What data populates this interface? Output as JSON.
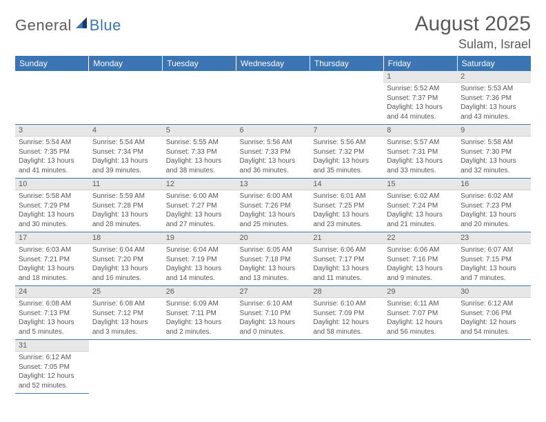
{
  "brand": {
    "text1": "General",
    "text2": "Blue",
    "sail_color": "#173a6a"
  },
  "title": "August 2025",
  "location": "Sulam, Israel",
  "colors": {
    "header_bg": "#3b75b3",
    "header_text": "#ffffff",
    "daynum_bg": "#e7e7e7",
    "rule": "#3b75b3",
    "body_text": "#555555"
  },
  "typography": {
    "title_fontsize": 30,
    "location_fontsize": 18,
    "weekday_fontsize": 12,
    "daynum_fontsize": 11,
    "cell_fontsize": 10
  },
  "weekdays": [
    "Sunday",
    "Monday",
    "Tuesday",
    "Wednesday",
    "Thursday",
    "Friday",
    "Saturday"
  ],
  "weeks": [
    [
      null,
      null,
      null,
      null,
      null,
      {
        "n": "1",
        "sr": "Sunrise: 5:52 AM",
        "ss": "Sunset: 7:37 PM",
        "dl": "Daylight: 13 hours and 44 minutes."
      },
      {
        "n": "2",
        "sr": "Sunrise: 5:53 AM",
        "ss": "Sunset: 7:36 PM",
        "dl": "Daylight: 13 hours and 43 minutes."
      }
    ],
    [
      {
        "n": "3",
        "sr": "Sunrise: 5:54 AM",
        "ss": "Sunset: 7:35 PM",
        "dl": "Daylight: 13 hours and 41 minutes."
      },
      {
        "n": "4",
        "sr": "Sunrise: 5:54 AM",
        "ss": "Sunset: 7:34 PM",
        "dl": "Daylight: 13 hours and 39 minutes."
      },
      {
        "n": "5",
        "sr": "Sunrise: 5:55 AM",
        "ss": "Sunset: 7:33 PM",
        "dl": "Daylight: 13 hours and 38 minutes."
      },
      {
        "n": "6",
        "sr": "Sunrise: 5:56 AM",
        "ss": "Sunset: 7:33 PM",
        "dl": "Daylight: 13 hours and 36 minutes."
      },
      {
        "n": "7",
        "sr": "Sunrise: 5:56 AM",
        "ss": "Sunset: 7:32 PM",
        "dl": "Daylight: 13 hours and 35 minutes."
      },
      {
        "n": "8",
        "sr": "Sunrise: 5:57 AM",
        "ss": "Sunset: 7:31 PM",
        "dl": "Daylight: 13 hours and 33 minutes."
      },
      {
        "n": "9",
        "sr": "Sunrise: 5:58 AM",
        "ss": "Sunset: 7:30 PM",
        "dl": "Daylight: 13 hours and 32 minutes."
      }
    ],
    [
      {
        "n": "10",
        "sr": "Sunrise: 5:58 AM",
        "ss": "Sunset: 7:29 PM",
        "dl": "Daylight: 13 hours and 30 minutes."
      },
      {
        "n": "11",
        "sr": "Sunrise: 5:59 AM",
        "ss": "Sunset: 7:28 PM",
        "dl": "Daylight: 13 hours and 28 minutes."
      },
      {
        "n": "12",
        "sr": "Sunrise: 6:00 AM",
        "ss": "Sunset: 7:27 PM",
        "dl": "Daylight: 13 hours and 27 minutes."
      },
      {
        "n": "13",
        "sr": "Sunrise: 6:00 AM",
        "ss": "Sunset: 7:26 PM",
        "dl": "Daylight: 13 hours and 25 minutes."
      },
      {
        "n": "14",
        "sr": "Sunrise: 6:01 AM",
        "ss": "Sunset: 7:25 PM",
        "dl": "Daylight: 13 hours and 23 minutes."
      },
      {
        "n": "15",
        "sr": "Sunrise: 6:02 AM",
        "ss": "Sunset: 7:24 PM",
        "dl": "Daylight: 13 hours and 21 minutes."
      },
      {
        "n": "16",
        "sr": "Sunrise: 6:02 AM",
        "ss": "Sunset: 7:23 PM",
        "dl": "Daylight: 13 hours and 20 minutes."
      }
    ],
    [
      {
        "n": "17",
        "sr": "Sunrise: 6:03 AM",
        "ss": "Sunset: 7:21 PM",
        "dl": "Daylight: 13 hours and 18 minutes."
      },
      {
        "n": "18",
        "sr": "Sunrise: 6:04 AM",
        "ss": "Sunset: 7:20 PM",
        "dl": "Daylight: 13 hours and 16 minutes."
      },
      {
        "n": "19",
        "sr": "Sunrise: 6:04 AM",
        "ss": "Sunset: 7:19 PM",
        "dl": "Daylight: 13 hours and 14 minutes."
      },
      {
        "n": "20",
        "sr": "Sunrise: 6:05 AM",
        "ss": "Sunset: 7:18 PM",
        "dl": "Daylight: 13 hours and 13 minutes."
      },
      {
        "n": "21",
        "sr": "Sunrise: 6:06 AM",
        "ss": "Sunset: 7:17 PM",
        "dl": "Daylight: 13 hours and 11 minutes."
      },
      {
        "n": "22",
        "sr": "Sunrise: 6:06 AM",
        "ss": "Sunset: 7:16 PM",
        "dl": "Daylight: 13 hours and 9 minutes."
      },
      {
        "n": "23",
        "sr": "Sunrise: 6:07 AM",
        "ss": "Sunset: 7:15 PM",
        "dl": "Daylight: 13 hours and 7 minutes."
      }
    ],
    [
      {
        "n": "24",
        "sr": "Sunrise: 6:08 AM",
        "ss": "Sunset: 7:13 PM",
        "dl": "Daylight: 13 hours and 5 minutes."
      },
      {
        "n": "25",
        "sr": "Sunrise: 6:08 AM",
        "ss": "Sunset: 7:12 PM",
        "dl": "Daylight: 13 hours and 3 minutes."
      },
      {
        "n": "26",
        "sr": "Sunrise: 6:09 AM",
        "ss": "Sunset: 7:11 PM",
        "dl": "Daylight: 13 hours and 2 minutes."
      },
      {
        "n": "27",
        "sr": "Sunrise: 6:10 AM",
        "ss": "Sunset: 7:10 PM",
        "dl": "Daylight: 13 hours and 0 minutes."
      },
      {
        "n": "28",
        "sr": "Sunrise: 6:10 AM",
        "ss": "Sunset: 7:09 PM",
        "dl": "Daylight: 12 hours and 58 minutes."
      },
      {
        "n": "29",
        "sr": "Sunrise: 6:11 AM",
        "ss": "Sunset: 7:07 PM",
        "dl": "Daylight: 12 hours and 56 minutes."
      },
      {
        "n": "30",
        "sr": "Sunrise: 6:12 AM",
        "ss": "Sunset: 7:06 PM",
        "dl": "Daylight: 12 hours and 54 minutes."
      }
    ],
    [
      {
        "n": "31",
        "sr": "Sunrise: 6:12 AM",
        "ss": "Sunset: 7:05 PM",
        "dl": "Daylight: 12 hours and 52 minutes."
      },
      null,
      null,
      null,
      null,
      null,
      null
    ]
  ]
}
